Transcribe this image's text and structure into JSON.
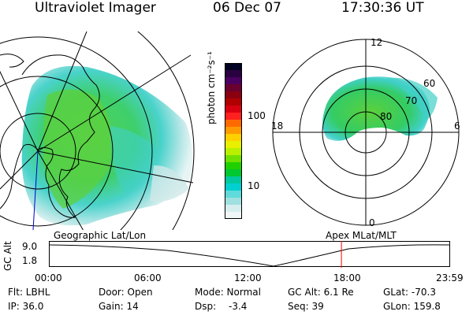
{
  "header": {
    "instrument": "Ultraviolet Imager",
    "date": "06 Dec 07",
    "time": "17:30:36 UT"
  },
  "colorbar": {
    "label": "photon cm⁻²s⁻¹",
    "tick_labels": [
      "100",
      "10"
    ],
    "colors": [
      "#000020",
      "#2a0040",
      "#4a0060",
      "#6a0030",
      "#8a0010",
      "#b00000",
      "#d80010",
      "#ff2020",
      "#ff6a00",
      "#ff9a00",
      "#ffd000",
      "#e8f000",
      "#b8f000",
      "#70e000",
      "#20d000",
      "#00c830",
      "#00c8a0",
      "#00d0d0",
      "#60dada",
      "#a0e0e0",
      "#d6eeee",
      "#f0f7f7"
    ]
  },
  "polar_plot": {
    "mlt_labels": [
      "12",
      "18",
      "6",
      "0"
    ],
    "mlat_labels": [
      "60",
      "70",
      "80"
    ]
  },
  "timeline": {
    "y_axis_label": "GC Alt",
    "y_ticks": [
      "9.0",
      "1.8"
    ],
    "left_caption": "Geographic Lat/Lon",
    "right_caption": "Apex MLat/MLT",
    "x_ticks": [
      "00:00",
      "06:00",
      "12:00",
      "18:00",
      "23:59"
    ],
    "current_time_fraction": 0.73,
    "marker_color": "#ff0000"
  },
  "info": {
    "filter": "Flt: LBHL",
    "door": "Door: Open",
    "mode": "Mode: Normal",
    "gc_alt": "GC Alt: 6.1 Re",
    "glat": "GLat: -70.3",
    "ip": "IP: 36.0",
    "gain": "Gain: 14",
    "dsp_label": "Dsp:",
    "dsp_value": "-3.4",
    "seq": "Seq: 39",
    "glon": "GLon: 159.8"
  }
}
